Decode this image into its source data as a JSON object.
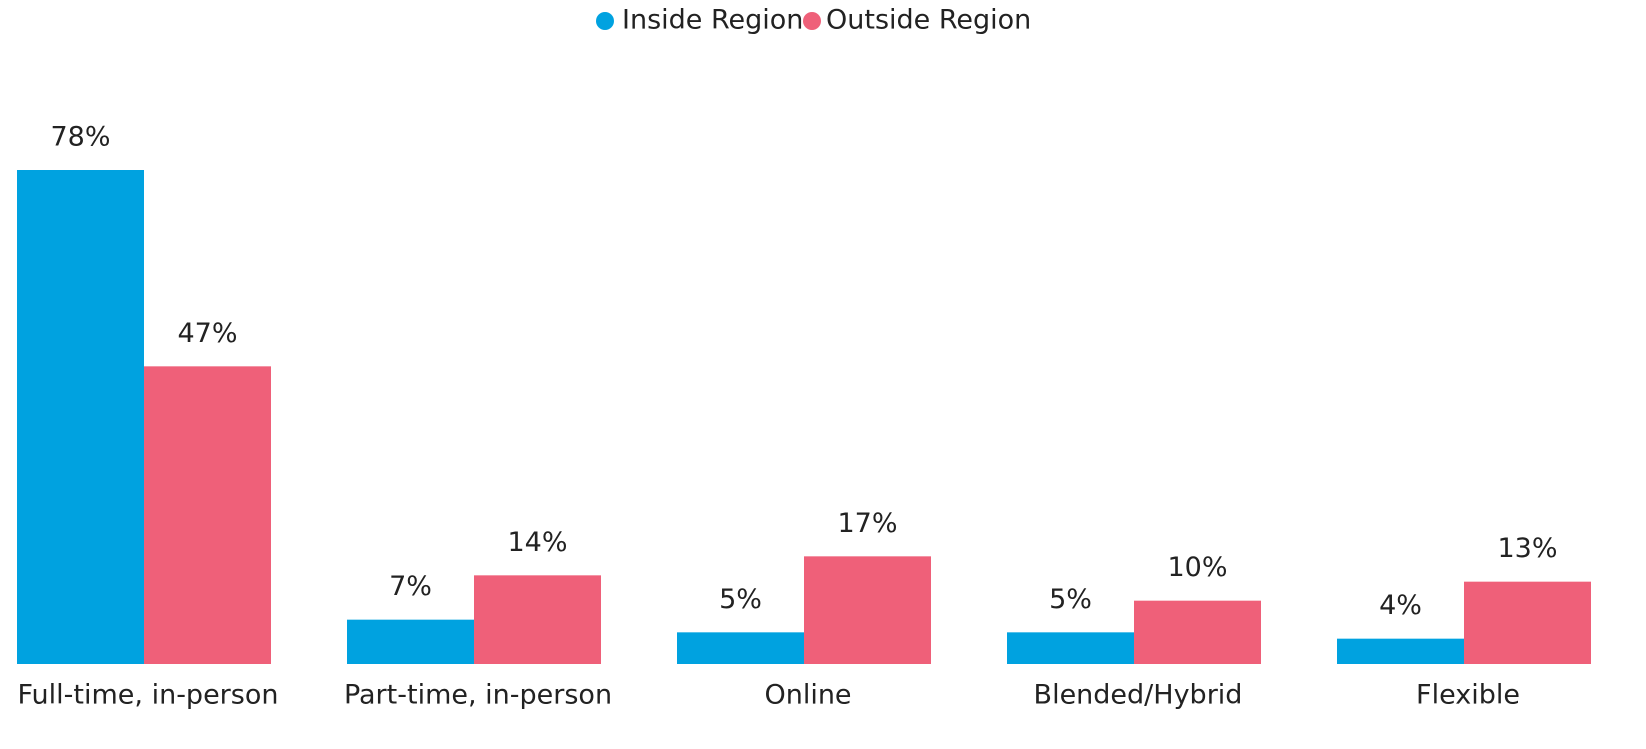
{
  "chart_data": {
    "type": "bar",
    "categories": [
      "Full-time, in-person",
      "Part-time, in-person",
      "Online",
      "Blended/Hybrid",
      "Flexible"
    ],
    "series": [
      {
        "name": "Inside Region",
        "color": "#00a2e0",
        "values": [
          78,
          7,
          5,
          5,
          4
        ],
        "value_labels": [
          "78%",
          "7%",
          "5%",
          "5%",
          "4%"
        ]
      },
      {
        "name": "Outside Region",
        "color": "#ef6079",
        "values": [
          47,
          14,
          17,
          10,
          13
        ],
        "value_labels": [
          "47%",
          "14%",
          "17%",
          "10%",
          "13%"
        ]
      }
    ],
    "legend": "top"
  }
}
